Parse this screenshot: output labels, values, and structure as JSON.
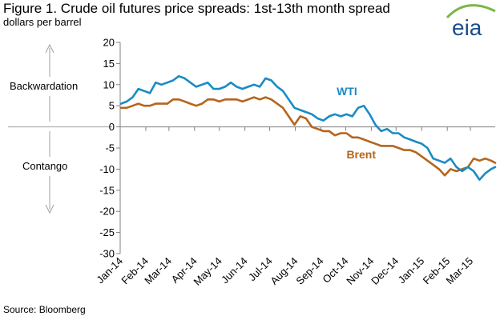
{
  "header": {
    "title": "Figure 1.  Crude oil futures price spreads:  1st-13th month spread",
    "subtitle": "dollars per barrel"
  },
  "logo": {
    "text": "eia",
    "icon": "eia-logo-icon",
    "color": "#1a4e8a",
    "swoosh_color": "#7ab648"
  },
  "annotations": {
    "upper": "Backwardation",
    "lower": "Contango"
  },
  "source": "Source:  Bloomberg",
  "colors": {
    "wti": "#1a8bc4",
    "brent": "#b5651d",
    "axis": "#808080",
    "guide": "#a0a0a0"
  },
  "chart_data": {
    "type": "line",
    "title": "Figure 1.  Crude oil futures price spreads:  1st-13th month spread",
    "ylabel": "dollars per barrel",
    "ylim": [
      -30,
      20
    ],
    "yticks": [
      20,
      15,
      10,
      5,
      0,
      -5,
      -10,
      -15,
      -20,
      -25,
      -30
    ],
    "xlim": [
      "2014-01-01",
      "2015-03-31"
    ],
    "xtick_labels": [
      "Jan-14",
      "Feb-14",
      "Mar-14",
      "Apr-14",
      "May-14",
      "Jun-14",
      "Jul-14",
      "Aug-14",
      "Sep-14",
      "Oct-14",
      "Nov-14",
      "Dec-14",
      "Jan-15",
      "Feb-15",
      "Mar-15"
    ],
    "grid": false,
    "series": [
      {
        "name": "WTI",
        "color": "#1a8bc4",
        "points": [
          [
            "2014-01-02",
            5.5
          ],
          [
            "2014-01-09",
            6.0
          ],
          [
            "2014-01-16",
            7.0
          ],
          [
            "2014-01-23",
            9.0
          ],
          [
            "2014-01-30",
            8.5
          ],
          [
            "2014-02-06",
            8.0
          ],
          [
            "2014-02-13",
            10.5
          ],
          [
            "2014-02-20",
            10.0
          ],
          [
            "2014-02-27",
            10.5
          ],
          [
            "2014-03-06",
            11.0
          ],
          [
            "2014-03-13",
            12.0
          ],
          [
            "2014-03-20",
            11.5
          ],
          [
            "2014-03-27",
            10.5
          ],
          [
            "2014-04-03",
            9.5
          ],
          [
            "2014-04-10",
            10.0
          ],
          [
            "2014-04-17",
            10.5
          ],
          [
            "2014-04-24",
            9.0
          ],
          [
            "2014-05-01",
            9.0
          ],
          [
            "2014-05-08",
            9.5
          ],
          [
            "2014-05-15",
            10.5
          ],
          [
            "2014-05-22",
            9.5
          ],
          [
            "2014-05-29",
            9.0
          ],
          [
            "2014-06-05",
            9.5
          ],
          [
            "2014-06-12",
            10.0
          ],
          [
            "2014-06-19",
            9.5
          ],
          [
            "2014-06-26",
            11.5
          ],
          [
            "2014-07-03",
            11.0
          ],
          [
            "2014-07-10",
            9.5
          ],
          [
            "2014-07-17",
            8.5
          ],
          [
            "2014-07-24",
            6.5
          ],
          [
            "2014-07-31",
            4.5
          ],
          [
            "2014-08-07",
            4.0
          ],
          [
            "2014-08-14",
            3.5
          ],
          [
            "2014-08-21",
            3.0
          ],
          [
            "2014-08-28",
            2.0
          ],
          [
            "2014-09-04",
            1.5
          ],
          [
            "2014-09-11",
            2.5
          ],
          [
            "2014-09-18",
            3.0
          ],
          [
            "2014-09-25",
            2.5
          ],
          [
            "2014-10-02",
            3.0
          ],
          [
            "2014-10-09",
            2.5
          ],
          [
            "2014-10-16",
            4.5
          ],
          [
            "2014-10-23",
            5.0
          ],
          [
            "2014-10-30",
            3.0
          ],
          [
            "2014-11-06",
            0.5
          ],
          [
            "2014-11-13",
            -1.0
          ],
          [
            "2014-11-20",
            -0.5
          ],
          [
            "2014-11-27",
            -1.5
          ],
          [
            "2014-12-04",
            -1.5
          ],
          [
            "2014-12-11",
            -2.5
          ],
          [
            "2014-12-18",
            -3.0
          ],
          [
            "2014-12-25",
            -3.5
          ],
          [
            "2015-01-01",
            -4.0
          ],
          [
            "2015-01-08",
            -5.0
          ],
          [
            "2015-01-15",
            -7.5
          ],
          [
            "2015-01-22",
            -8.0
          ],
          [
            "2015-01-29",
            -8.5
          ],
          [
            "2015-02-05",
            -7.5
          ],
          [
            "2015-02-12",
            -9.5
          ],
          [
            "2015-02-19",
            -10.5
          ],
          [
            "2015-02-26",
            -9.5
          ],
          [
            "2015-03-05",
            -10.5
          ],
          [
            "2015-03-12",
            -12.5
          ],
          [
            "2015-03-19",
            -11.0
          ],
          [
            "2015-03-26",
            -10.0
          ],
          [
            "2015-03-31",
            -9.5
          ]
        ]
      },
      {
        "name": "Brent",
        "color": "#b5651d",
        "points": [
          [
            "2014-01-02",
            4.5
          ],
          [
            "2014-01-09",
            4.5
          ],
          [
            "2014-01-16",
            5.0
          ],
          [
            "2014-01-23",
            5.5
          ],
          [
            "2014-01-30",
            5.0
          ],
          [
            "2014-02-06",
            5.0
          ],
          [
            "2014-02-13",
            5.5
          ],
          [
            "2014-02-20",
            5.5
          ],
          [
            "2014-02-27",
            5.5
          ],
          [
            "2014-03-06",
            6.5
          ],
          [
            "2014-03-13",
            6.5
          ],
          [
            "2014-03-20",
            6.0
          ],
          [
            "2014-03-27",
            5.5
          ],
          [
            "2014-04-03",
            5.0
          ],
          [
            "2014-04-10",
            5.5
          ],
          [
            "2014-04-17",
            6.5
          ],
          [
            "2014-04-24",
            6.5
          ],
          [
            "2014-05-01",
            6.0
          ],
          [
            "2014-05-08",
            6.5
          ],
          [
            "2014-05-15",
            6.5
          ],
          [
            "2014-05-22",
            6.5
          ],
          [
            "2014-05-29",
            6.0
          ],
          [
            "2014-06-05",
            6.5
          ],
          [
            "2014-06-12",
            7.0
          ],
          [
            "2014-06-19",
            6.5
          ],
          [
            "2014-06-26",
            7.0
          ],
          [
            "2014-07-03",
            6.5
          ],
          [
            "2014-07-10",
            5.5
          ],
          [
            "2014-07-17",
            4.5
          ],
          [
            "2014-07-24",
            2.5
          ],
          [
            "2014-07-31",
            0.5
          ],
          [
            "2014-08-07",
            2.5
          ],
          [
            "2014-08-14",
            2.0
          ],
          [
            "2014-08-21",
            0.0
          ],
          [
            "2014-08-28",
            -0.5
          ],
          [
            "2014-09-04",
            -1.0
          ],
          [
            "2014-09-11",
            -1.0
          ],
          [
            "2014-09-18",
            -2.0
          ],
          [
            "2014-09-25",
            -1.5
          ],
          [
            "2014-10-02",
            -1.5
          ],
          [
            "2014-10-09",
            -2.5
          ],
          [
            "2014-10-16",
            -2.5
          ],
          [
            "2014-10-23",
            -3.0
          ],
          [
            "2014-10-30",
            -3.5
          ],
          [
            "2014-11-06",
            -4.0
          ],
          [
            "2014-11-13",
            -4.5
          ],
          [
            "2014-11-20",
            -4.5
          ],
          [
            "2014-11-27",
            -4.5
          ],
          [
            "2014-12-04",
            -5.0
          ],
          [
            "2014-12-11",
            -5.5
          ],
          [
            "2014-12-18",
            -5.5
          ],
          [
            "2014-12-25",
            -6.0
          ],
          [
            "2015-01-01",
            -7.0
          ],
          [
            "2015-01-08",
            -8.0
          ],
          [
            "2015-01-15",
            -9.0
          ],
          [
            "2015-01-22",
            -10.0
          ],
          [
            "2015-01-29",
            -11.5
          ],
          [
            "2015-02-05",
            -10.0
          ],
          [
            "2015-02-12",
            -10.5
          ],
          [
            "2015-02-19",
            -10.0
          ],
          [
            "2015-02-26",
            -9.5
          ],
          [
            "2015-03-05",
            -7.5
          ],
          [
            "2015-03-12",
            -8.0
          ],
          [
            "2015-03-19",
            -7.5
          ],
          [
            "2015-03-26",
            -8.0
          ],
          [
            "2015-03-31",
            -8.5
          ]
        ]
      }
    ]
  }
}
